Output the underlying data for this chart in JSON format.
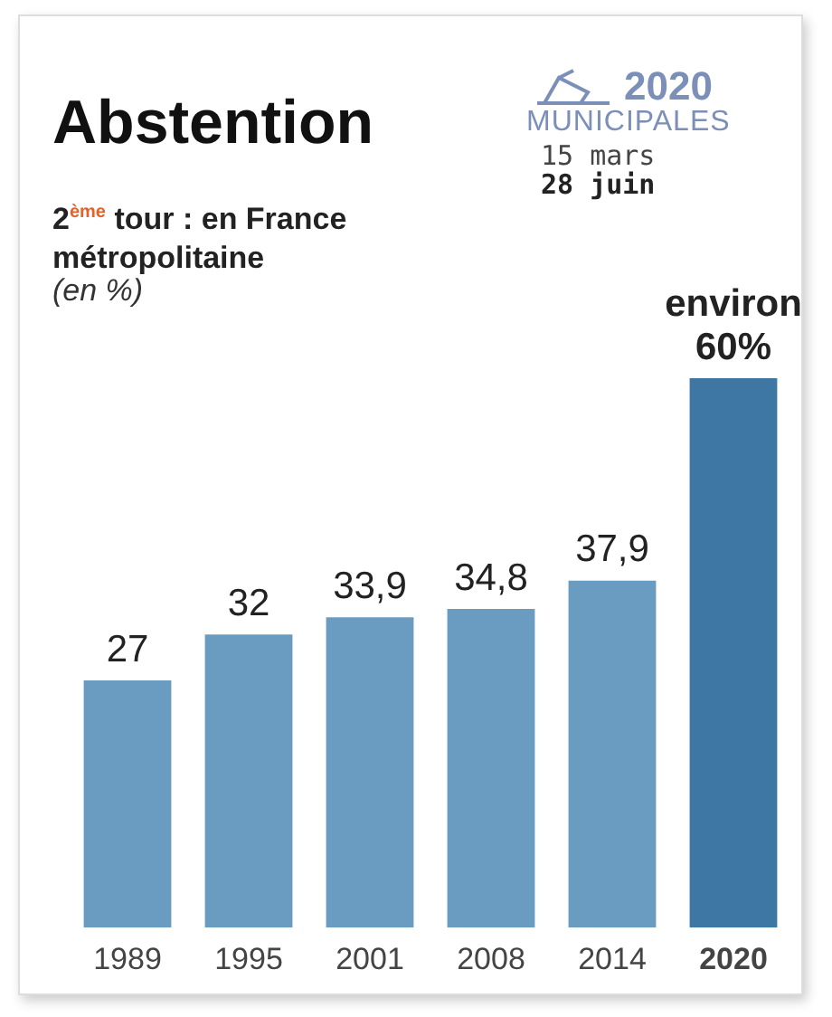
{
  "chart_data": {
    "type": "bar",
    "title": "Abstention",
    "subtitle": "2$^{ème}$ tour : en France métropolitaine",
    "annotations": [
      "(en %)",
      "2020",
      "MUNICIPALES",
      "15 mars",
      "28 juin"
    ],
    "categories": [
      "1989",
      "1995",
      "2001",
      "2008",
      "2014",
      "2020"
    ],
    "values": [
      27,
      32,
      33.9,
      34.8,
      37.9,
      60
    ],
    "colors": [
      "#6a9cc2",
      "#6a9cc2",
      "#6a9cc2",
      "#6a9cc2",
      "#6a9cc2",
      "#3e77a3"
    ],
    "value_labels": [
      "27",
      "32",
      "33,9",
      "34,8",
      "37,9",
      "environ\n60%"
    ],
    "grid": false,
    "legend": false
  }
}
